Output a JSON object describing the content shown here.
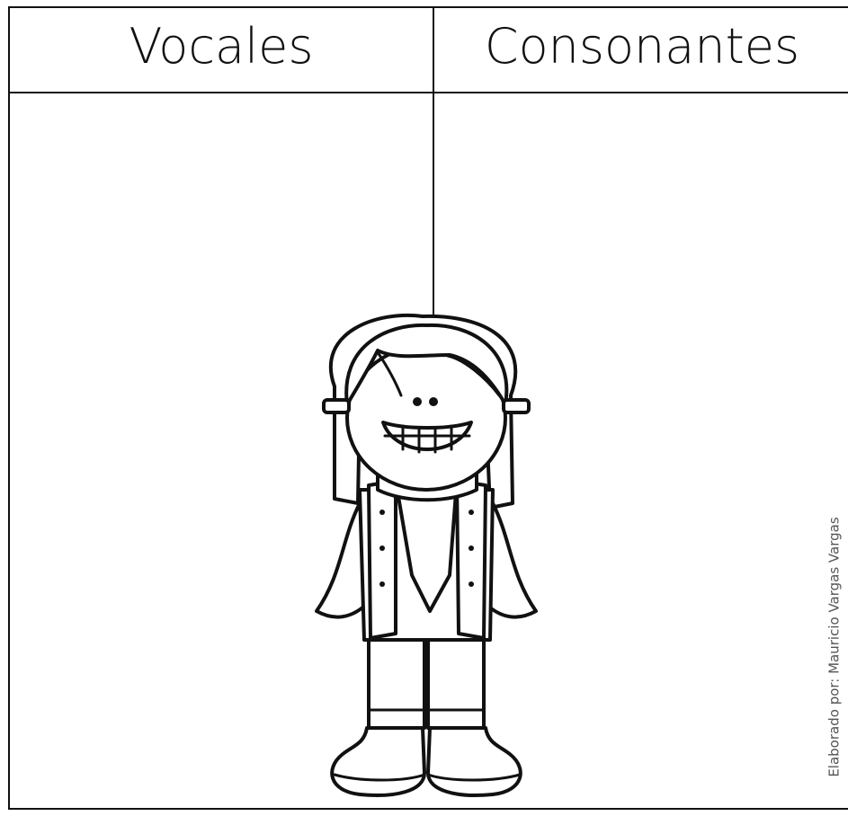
{
  "table": {
    "headers": [
      "Vocales",
      "Consonantes"
    ]
  },
  "credit": "Elaborado por: Mauricio Vargas Vargas"
}
